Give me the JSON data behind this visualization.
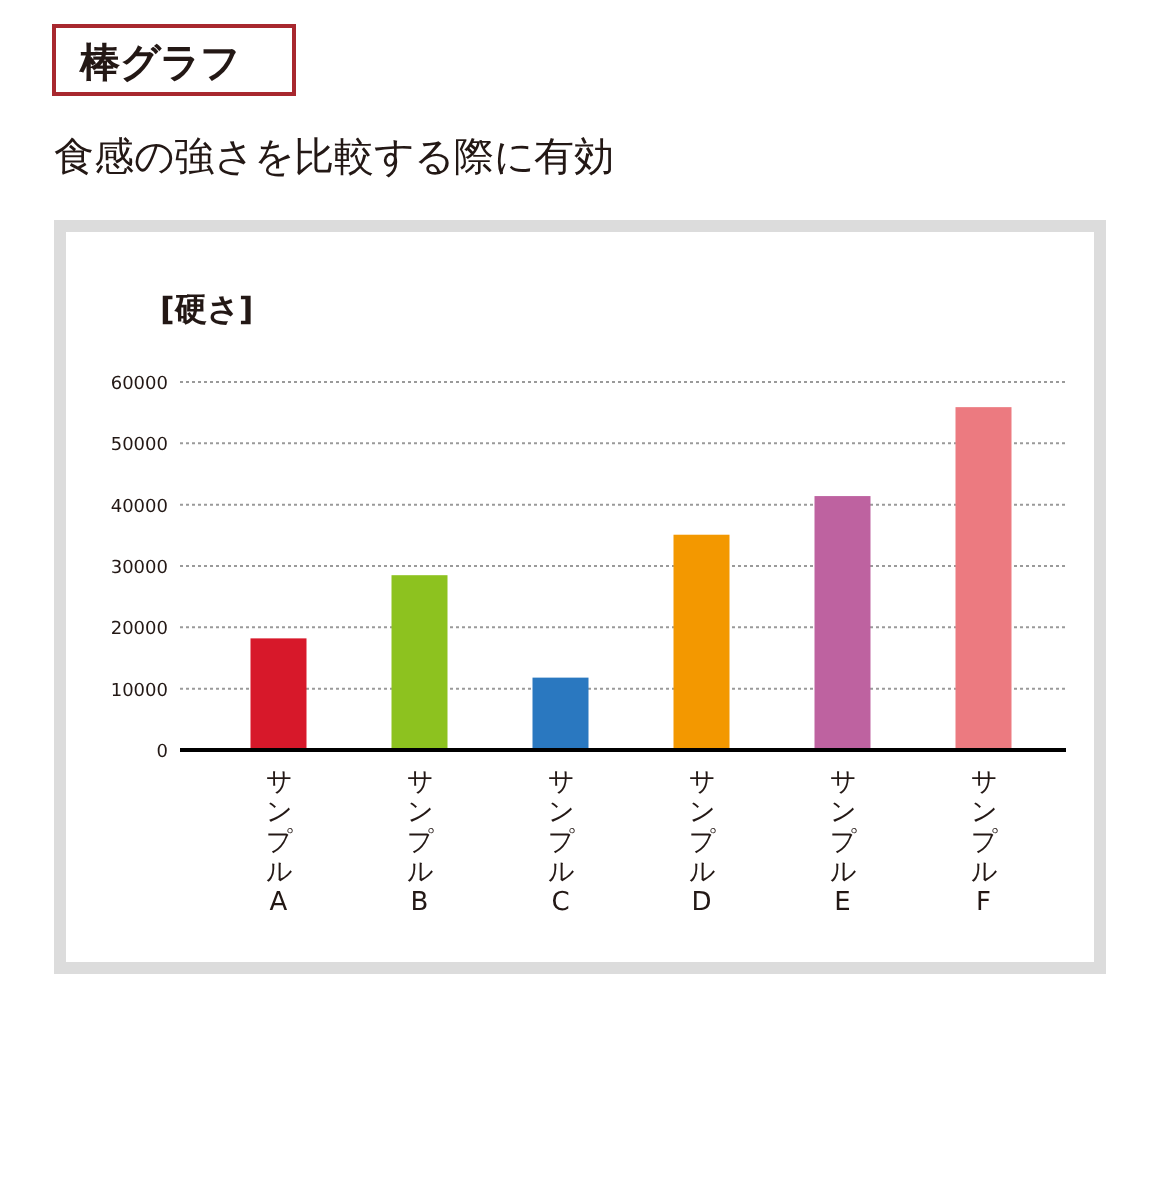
{
  "chart_data": {
    "type": "bar",
    "title": "棒グラフ",
    "subtitle": "食感の強さを比較する際に有効",
    "ylabel": "[硬さ]",
    "categories": [
      "サンプルA",
      "サンプルB",
      "サンプルC",
      "サンプルD",
      "サンプルE",
      "サンプルF"
    ],
    "values": [
      18200,
      28500,
      11800,
      35100,
      41400,
      55900
    ],
    "colors": [
      "#d7182a",
      "#8dc21f",
      "#2a78c0",
      "#f39800",
      "#be62a0",
      "#ec7a80"
    ],
    "ylim": [
      0,
      60000
    ],
    "yticks": [
      0,
      10000,
      20000,
      30000,
      40000,
      50000,
      60000
    ],
    "grid": "y"
  }
}
